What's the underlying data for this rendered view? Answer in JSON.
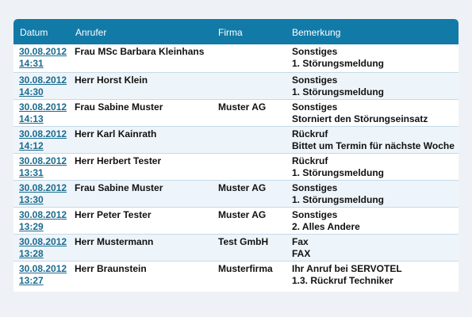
{
  "header": {
    "datum": "Datum",
    "anrufer": "Anrufer",
    "firma": "Firma",
    "bemerkung": "Bemerkung"
  },
  "rows": [
    {
      "date": "30.08.2012",
      "time": "14:31",
      "caller": "Frau MSc Barbara Kleinhans",
      "firm": "",
      "note1": "Sonstiges",
      "note2": "1. Störungsmeldung"
    },
    {
      "date": "30.08.2012",
      "time": "14:30",
      "caller": "Herr Horst Klein",
      "firm": "",
      "note1": "Sonstiges",
      "note2": "1. Störungsmeldung"
    },
    {
      "date": "30.08.2012",
      "time": "14:13",
      "caller": "Frau Sabine Muster",
      "firm": "Muster AG",
      "note1": "Sonstiges",
      "note2": "Storniert den Störungseinsatz"
    },
    {
      "date": "30.08.2012",
      "time": "14:12",
      "caller": "Herr Karl Kainrath",
      "firm": "",
      "note1": "Rückruf",
      "note2": "Bittet um Termin für nächste Woche"
    },
    {
      "date": "30.08.2012",
      "time": "13:31",
      "caller": "Herr Herbert Tester",
      "firm": "",
      "note1": "Rückruf",
      "note2": "1. Störungsmeldung"
    },
    {
      "date": "30.08.2012",
      "time": "13:30",
      "caller": "Frau Sabine Muster",
      "firm": "Muster AG",
      "note1": "Sonstiges",
      "note2": "1. Störungsmeldung"
    },
    {
      "date": "30.08.2012",
      "time": "13:29",
      "caller": "Herr Peter Tester",
      "firm": "Muster AG",
      "note1": "Sonstiges",
      "note2": "2. Alles Andere"
    },
    {
      "date": "30.08.2012",
      "time": "13:28",
      "caller": "Herr Mustermann",
      "firm": "Test GmbH",
      "note1": "Fax",
      "note2": "FAX"
    },
    {
      "date": "30.08.2012",
      "time": "13:27",
      "caller": "Herr Braunstein",
      "firm": "Musterfirma",
      "note1": "Ihr Anruf bei SERVOTEL",
      "note2": "1.3. Rückruf Techniker"
    }
  ]
}
